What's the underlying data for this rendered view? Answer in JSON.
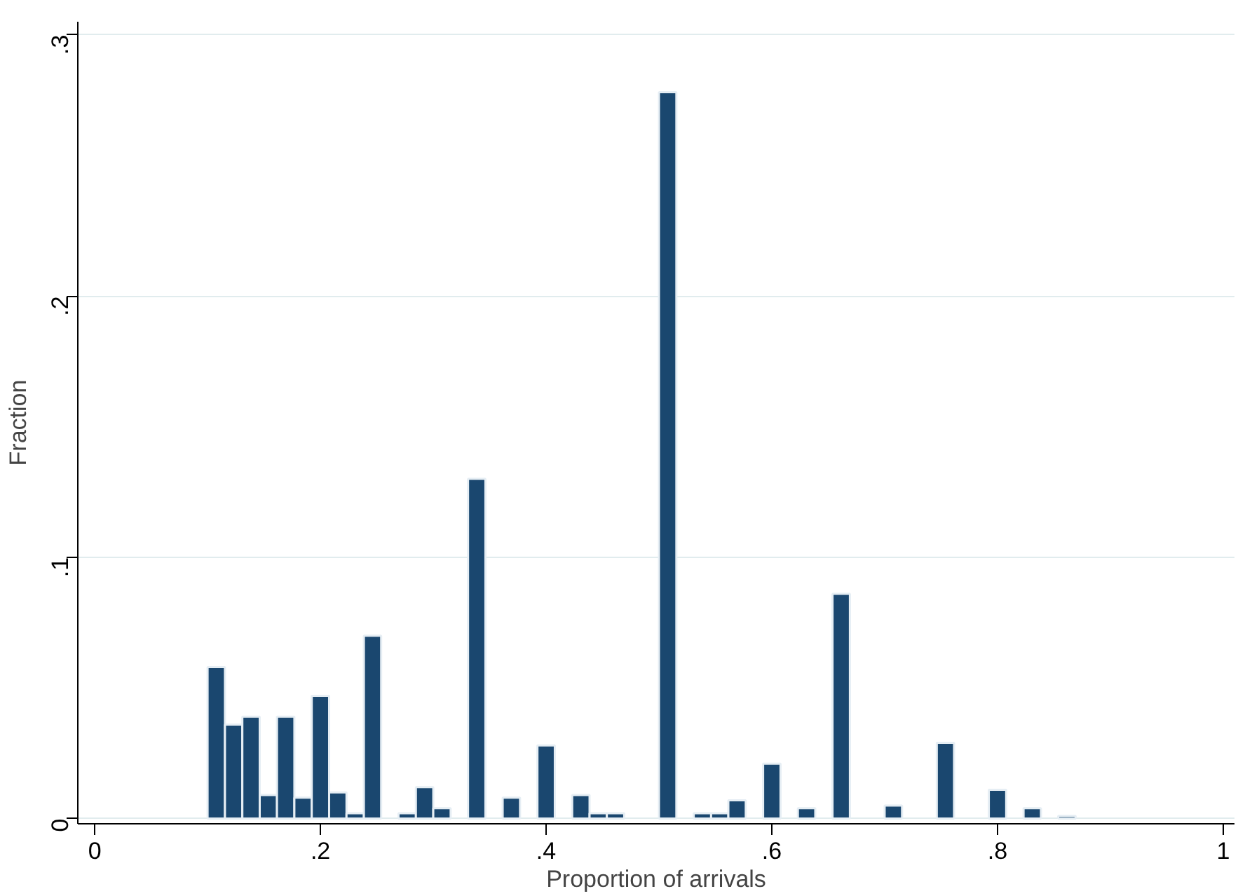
{
  "chart_data": {
    "type": "histogram",
    "xlabel": "Proportion of arrivals",
    "ylabel": "Fraction",
    "color": "#1a476f",
    "bins": [
      0.1,
      0.1154,
      0.1308,
      0.1462,
      0.1615,
      0.1769,
      0.1923,
      0.2077,
      0.2231,
      0.2385,
      0.2538,
      0.2692,
      0.2846,
      0.3,
      0.3154,
      0.3308,
      0.3462,
      0.3615,
      0.3769,
      0.3923,
      0.4077,
      0.4231,
      0.4385,
      0.4538,
      0.4692,
      0.4846,
      0.5,
      0.5154,
      0.5308,
      0.5462,
      0.5615,
      0.5769,
      0.5923,
      0.6077,
      0.6231,
      0.6385,
      0.6538,
      0.6692,
      0.6846,
      0.7,
      0.7154,
      0.7308,
      0.7462,
      0.7615,
      0.7769,
      0.7923,
      0.8077,
      0.8231,
      0.8385,
      0.8538,
      0.8692,
      0.8846,
      0.9
    ],
    "values": [
      0.058,
      0.036,
      0.039,
      0.009,
      0.039,
      0.008,
      0.047,
      0.01,
      0.002,
      0.07,
      0,
      0.002,
      0.012,
      0.004,
      0,
      0.13,
      0,
      0.008,
      0,
      0.028,
      0,
      0.009,
      0.002,
      0.002,
      0,
      0,
      0.278,
      0,
      0.002,
      0.002,
      0.007,
      0,
      0.021,
      0,
      0.004,
      0,
      0.086,
      0,
      0,
      0.005,
      0,
      0,
      0.029,
      0,
      0,
      0.011,
      0,
      0.004,
      0,
      0.001,
      0,
      0
    ],
    "xlim": [
      -0.015,
      1.01
    ],
    "ylim": [
      -0.002,
      0.305
    ],
    "xticks": [
      {
        "value": 0,
        "label": "0"
      },
      {
        "value": 0.2,
        "label": ".2"
      },
      {
        "value": 0.4,
        "label": ".4"
      },
      {
        "value": 0.6,
        "label": ".6"
      },
      {
        "value": 0.8,
        "label": ".8"
      },
      {
        "value": 1,
        "label": "1"
      }
    ],
    "yticks": [
      {
        "value": 0,
        "label": "0"
      },
      {
        "value": 0.1,
        "label": ".1"
      },
      {
        "value": 0.2,
        "label": ".2"
      },
      {
        "value": 0.3,
        "label": ".3"
      }
    ],
    "grid": "y"
  }
}
